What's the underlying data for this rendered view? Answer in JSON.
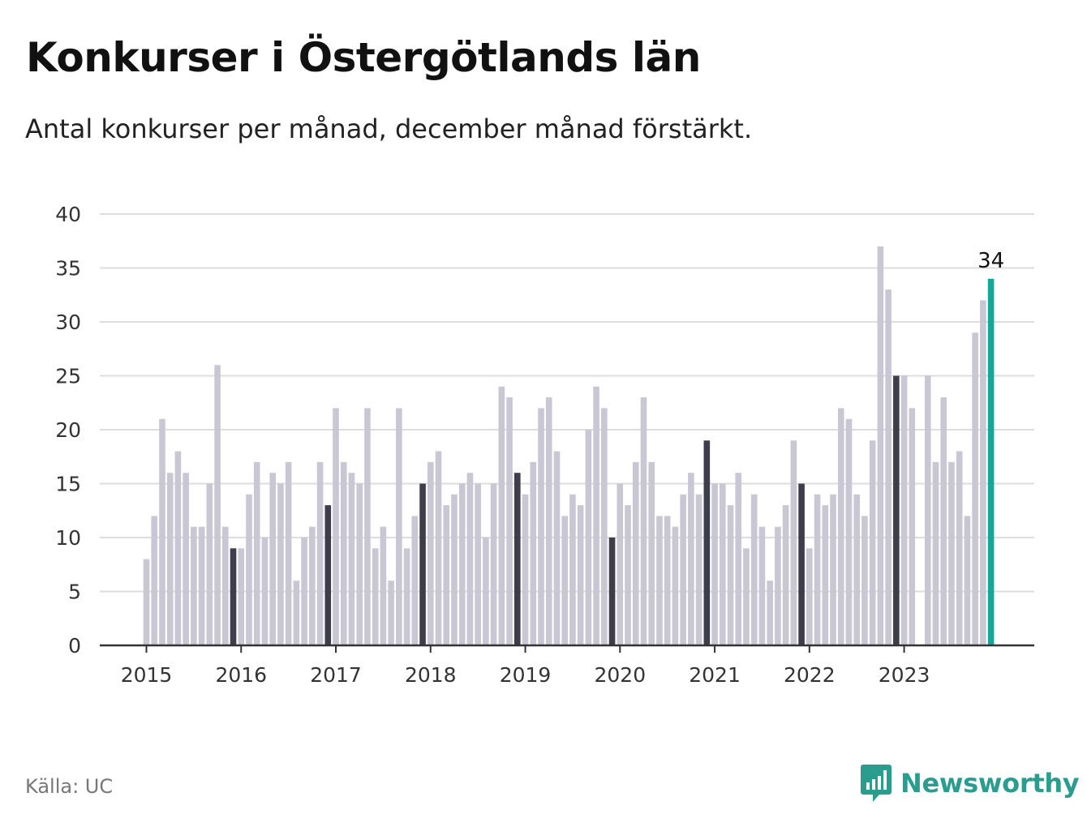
{
  "title": "Konkurser i Östergötlands län",
  "subtitle": "Antal konkurser per månad, december månad förstärkt.",
  "source": "Källa: UC",
  "brand": {
    "name": "Newsworthy",
    "icon": "bar-chart-speech-bubble-icon",
    "color": "#2a9d8f"
  },
  "chart_data": {
    "type": "bar",
    "ylim": [
      0,
      40
    ],
    "yticks": [
      0,
      5,
      10,
      15,
      20,
      25,
      30,
      35,
      40
    ],
    "grid": true,
    "x_start": "2015-01",
    "xtick_labels": [
      "2015",
      "2016",
      "2017",
      "2018",
      "2019",
      "2020",
      "2021",
      "2022",
      "2023"
    ],
    "values": [
      8,
      12,
      21,
      16,
      18,
      16,
      11,
      11,
      15,
      26,
      11,
      9,
      9,
      14,
      17,
      10,
      16,
      15,
      17,
      6,
      10,
      11,
      17,
      13,
      22,
      17,
      16,
      15,
      22,
      9,
      11,
      6,
      22,
      9,
      12,
      15,
      17,
      18,
      13,
      14,
      15,
      16,
      15,
      10,
      15,
      24,
      23,
      16,
      14,
      17,
      22,
      23,
      18,
      12,
      14,
      13,
      20,
      24,
      22,
      10,
      15,
      13,
      17,
      23,
      17,
      12,
      12,
      11,
      14,
      16,
      14,
      19,
      15,
      15,
      13,
      16,
      9,
      14,
      11,
      6,
      11,
      13,
      19,
      15,
      9,
      14,
      13,
      14,
      22,
      21,
      14,
      12,
      19,
      37,
      33,
      25,
      25,
      22,
      0,
      25,
      17,
      23,
      17,
      18,
      12,
      29,
      32,
      34
    ],
    "colors": {
      "default": "#c8c7d3",
      "december": "#3e3d4c",
      "latest": "#1aa59a"
    },
    "annotation": {
      "label": "34"
    }
  }
}
